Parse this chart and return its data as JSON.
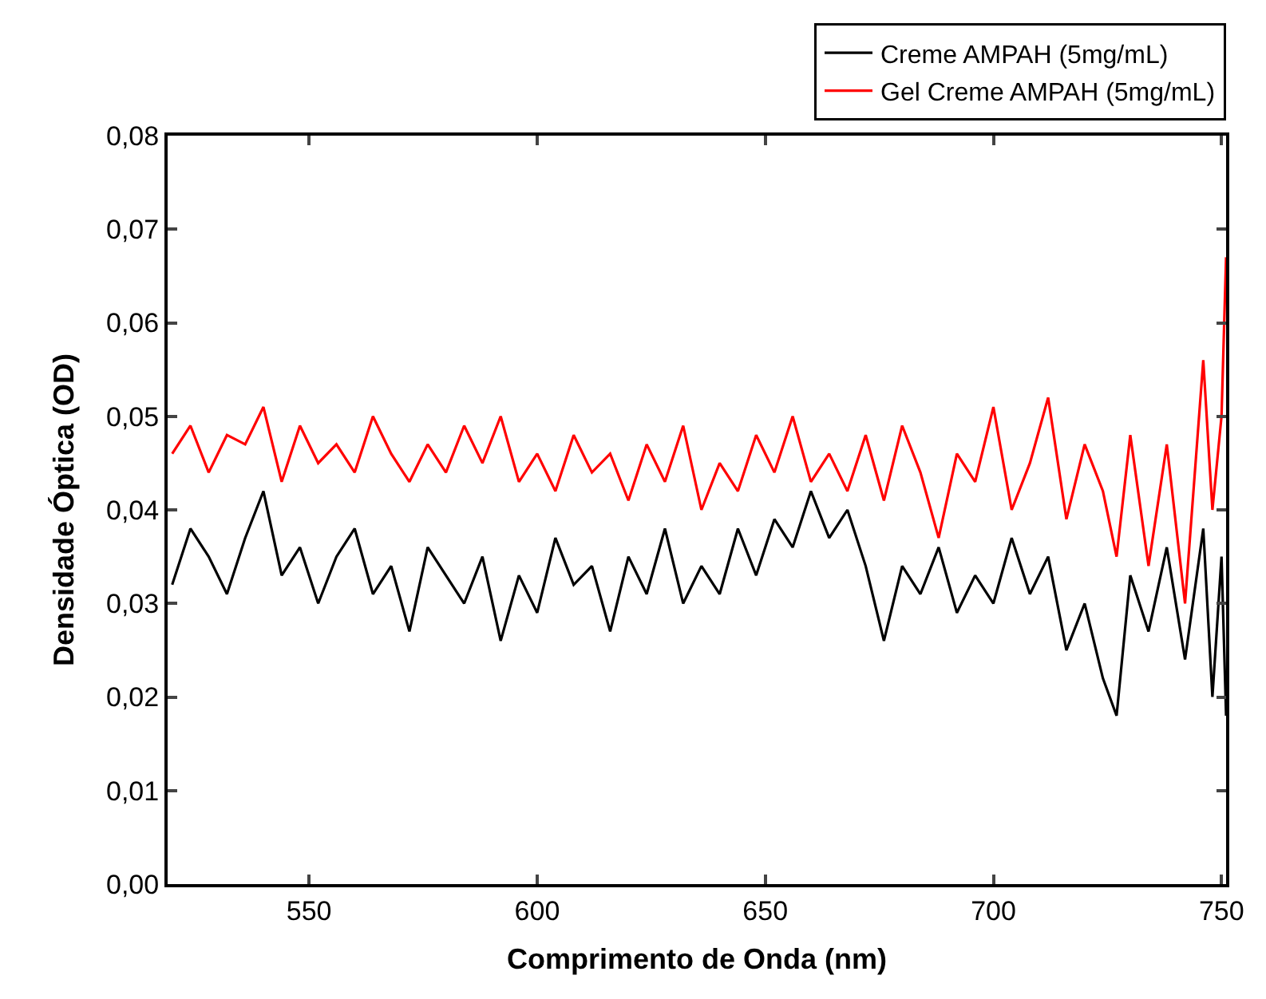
{
  "chart_data": {
    "type": "line",
    "xlabel": "Comprimento de Onda (nm)",
    "ylabel": "Densidade Óptica (OD)",
    "x": [
      520,
      524,
      528,
      532,
      536,
      540,
      544,
      548,
      552,
      556,
      560,
      564,
      568,
      572,
      576,
      580,
      584,
      588,
      592,
      596,
      600,
      604,
      608,
      612,
      616,
      620,
      624,
      628,
      632,
      636,
      640,
      644,
      648,
      652,
      656,
      660,
      664,
      668,
      672,
      676,
      680,
      684,
      688,
      692,
      696,
      700,
      704,
      708,
      712,
      716,
      720,
      724,
      727,
      730,
      734,
      738,
      742,
      746,
      748,
      750,
      751
    ],
    "series": [
      {
        "name": "Creme AMPAH (5mg/mL)",
        "color": "#000000",
        "values": [
          0.032,
          0.038,
          0.035,
          0.031,
          0.037,
          0.042,
          0.033,
          0.036,
          0.03,
          0.035,
          0.038,
          0.031,
          0.034,
          0.027,
          0.036,
          0.033,
          0.03,
          0.035,
          0.026,
          0.033,
          0.029,
          0.037,
          0.032,
          0.034,
          0.027,
          0.035,
          0.031,
          0.038,
          0.03,
          0.034,
          0.031,
          0.038,
          0.033,
          0.039,
          0.036,
          0.042,
          0.037,
          0.04,
          0.034,
          0.026,
          0.034,
          0.031,
          0.036,
          0.029,
          0.033,
          0.03,
          0.037,
          0.031,
          0.035,
          0.025,
          0.03,
          0.022,
          0.018,
          0.033,
          0.027,
          0.036,
          0.024,
          0.038,
          0.02,
          0.035,
          0.018
        ]
      },
      {
        "name": "Gel Creme AMPAH (5mg/mL)",
        "color": "#ff0000",
        "values": [
          0.046,
          0.049,
          0.044,
          0.048,
          0.047,
          0.051,
          0.043,
          0.049,
          0.045,
          0.047,
          0.044,
          0.05,
          0.046,
          0.043,
          0.047,
          0.044,
          0.049,
          0.045,
          0.05,
          0.043,
          0.046,
          0.042,
          0.048,
          0.044,
          0.046,
          0.041,
          0.047,
          0.043,
          0.049,
          0.04,
          0.045,
          0.042,
          0.048,
          0.044,
          0.05,
          0.043,
          0.046,
          0.042,
          0.048,
          0.041,
          0.049,
          0.044,
          0.037,
          0.046,
          0.043,
          0.051,
          0.04,
          0.045,
          0.052,
          0.039,
          0.047,
          0.042,
          0.035,
          0.048,
          0.034,
          0.047,
          0.03,
          0.056,
          0.04,
          0.05,
          0.067
        ]
      }
    ],
    "xlim": [
      519,
      751
    ],
    "xticks": [
      550,
      600,
      650,
      700,
      750
    ],
    "ylim": [
      0,
      0.08
    ],
    "yticks": [
      {
        "value": 0,
        "label": "0,00"
      },
      {
        "value": 0.01,
        "label": "0,01"
      },
      {
        "value": 0.02,
        "label": "0,02"
      },
      {
        "value": 0.03,
        "label": "0,03"
      },
      {
        "value": 0.04,
        "label": "0,04"
      },
      {
        "value": 0.05,
        "label": "0,05"
      },
      {
        "value": 0.06,
        "label": "0,06"
      },
      {
        "value": 0.07,
        "label": "0,07"
      },
      {
        "value": 0.08,
        "label": "0,08"
      }
    ],
    "legend": "top right",
    "marker": "none",
    "line_style": "solid"
  }
}
